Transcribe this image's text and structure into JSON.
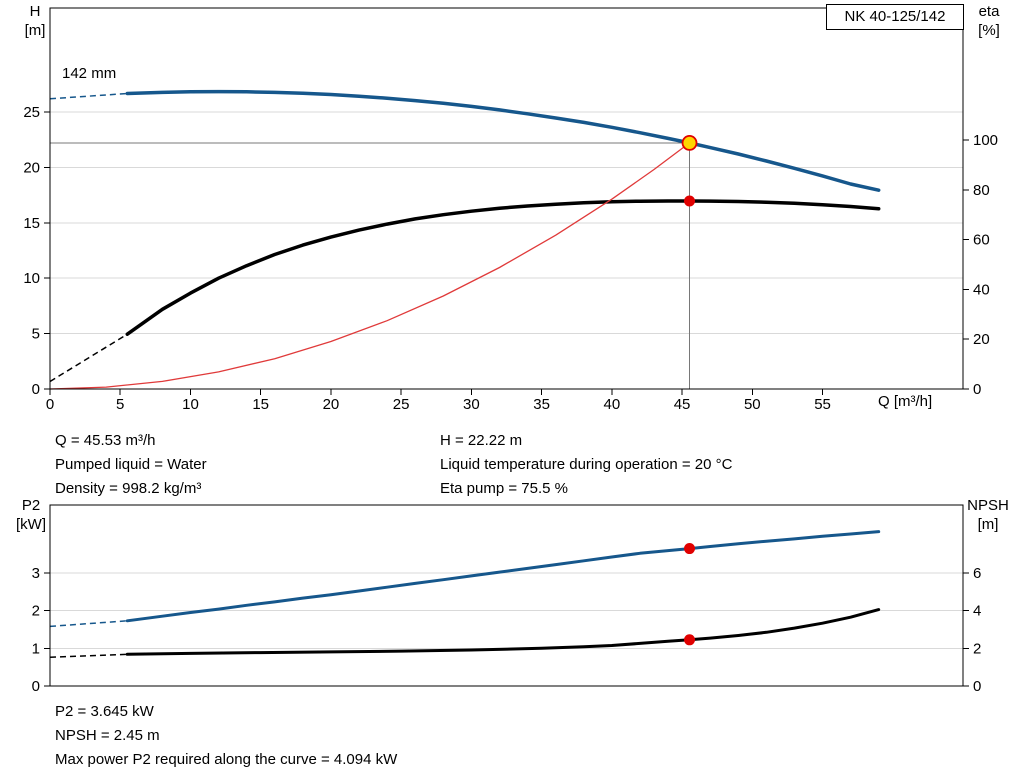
{
  "title_box": "NK 40-125/142",
  "info_top": {
    "left": [
      "Q = 45.53 m³/h",
      "Pumped liquid = Water",
      "Density = 998.2 kg/m³"
    ],
    "right": [
      "H = 22.22 m",
      "Liquid temperature during operation = 20 °C",
      "Eta pump = 75.5 %"
    ]
  },
  "info_bottom": [
    "P2 = 3.645 kW",
    "NPSH = 2.45 m",
    "Max power P2 required along the curve = 4.094 kW"
  ],
  "colors": {
    "curve_blue": "#16578c",
    "curve_black": "#000000",
    "system_red": "#e03a3a",
    "marker_red": "#e00000",
    "marker_yellow": "#ffd500"
  },
  "chart_data": [
    {
      "type": "line",
      "name": "qh-performance",
      "annotations": {
        "impeller": "142 mm"
      },
      "x_axis": {
        "label": "Q [m³/h]",
        "min": 0,
        "max": 65,
        "ticks": [
          0,
          5,
          10,
          15,
          20,
          25,
          30,
          35,
          40,
          45,
          50,
          55
        ]
      },
      "y_left": {
        "label": "H",
        "unit": "[m]",
        "min": 0,
        "max": 34.4,
        "ticks": [
          0,
          5,
          10,
          15,
          20,
          25
        ]
      },
      "y_right": {
        "label": "eta",
        "unit": "[%]",
        "min": 0,
        "max": 153,
        "ticks": [
          0,
          20,
          40,
          60,
          80,
          100
        ]
      },
      "duty_lines": {
        "q": 45.53,
        "h": 22.22
      },
      "series": [
        {
          "name": "head",
          "axis": "left",
          "color": "#16578c",
          "width": 3.5,
          "dashed": [
            [
              0,
              26.2
            ],
            [
              5.5,
              26.68
            ]
          ],
          "points": [
            [
              5.5,
              26.68
            ],
            [
              8,
              26.78
            ],
            [
              10,
              26.83
            ],
            [
              12,
              26.85
            ],
            [
              14,
              26.83
            ],
            [
              16,
              26.78
            ],
            [
              18,
              26.7
            ],
            [
              20,
              26.59
            ],
            [
              22,
              26.44
            ],
            [
              24,
              26.26
            ],
            [
              26,
              26.04
            ],
            [
              28,
              25.8
            ],
            [
              30,
              25.52
            ],
            [
              32,
              25.2
            ],
            [
              34,
              24.85
            ],
            [
              36,
              24.47
            ],
            [
              38,
              24.07
            ],
            [
              40,
              23.63
            ],
            [
              42,
              23.14
            ],
            [
              44,
              22.63
            ],
            [
              45.53,
              22.22
            ],
            [
              47,
              21.8
            ],
            [
              49,
              21.22
            ],
            [
              51,
              20.59
            ],
            [
              53,
              19.93
            ],
            [
              55,
              19.24
            ],
            [
              57,
              18.51
            ],
            [
              59,
              17.95
            ]
          ]
        },
        {
          "name": "efficiency",
          "axis": "right",
          "color": "#000000",
          "width": 3.5,
          "dashed": [
            [
              0,
              3
            ],
            [
              5.5,
              22
            ]
          ],
          "points": [
            [
              5.5,
              22
            ],
            [
              8,
              32
            ],
            [
              10,
              38.5
            ],
            [
              12,
              44.5
            ],
            [
              14,
              49.5
            ],
            [
              16,
              54
            ],
            [
              18,
              57.8
            ],
            [
              20,
              61
            ],
            [
              22,
              63.8
            ],
            [
              24,
              66.2
            ],
            [
              26,
              68.3
            ],
            [
              28,
              70
            ],
            [
              30,
              71.4
            ],
            [
              32,
              72.6
            ],
            [
              34,
              73.5
            ],
            [
              36,
              74.2
            ],
            [
              38,
              74.8
            ],
            [
              40,
              75.2
            ],
            [
              42,
              75.4
            ],
            [
              44,
              75.5
            ],
            [
              45.53,
              75.5
            ],
            [
              47,
              75.45
            ],
            [
              49,
              75.3
            ],
            [
              51,
              75.0
            ],
            [
              53,
              74.6
            ],
            [
              55,
              74.0
            ],
            [
              57,
              73.3
            ],
            [
              59,
              72.4
            ]
          ]
        },
        {
          "name": "system",
          "axis": "left",
          "color": "#e03a3a",
          "width": 1.3,
          "points": [
            [
              0,
              0
            ],
            [
              4,
              0.17
            ],
            [
              8,
              0.69
            ],
            [
              12,
              1.54
            ],
            [
              16,
              2.74
            ],
            [
              20,
              4.29
            ],
            [
              24,
              6.17
            ],
            [
              28,
              8.4
            ],
            [
              32,
              10.97
            ],
            [
              36,
              13.89
            ],
            [
              40,
              17.14
            ],
            [
              43,
              19.82
            ],
            [
              45.53,
              22.22
            ]
          ]
        }
      ],
      "markers": [
        {
          "q": 45.53,
          "value": 75.5,
          "axis": "right",
          "color": "#e00000",
          "r": 5.5,
          "name": "duty-eta-marker"
        },
        {
          "q": 45.53,
          "value": 22.22,
          "axis": "left",
          "color": "#ffd500",
          "ring": "#e00000",
          "r": 7,
          "name": "duty-point-marker"
        }
      ],
      "duty_point": {
        "q": 45.53,
        "h": 22.22,
        "eta": 75.5
      }
    },
    {
      "type": "line",
      "name": "power-npsh",
      "x_axis": {
        "min": 0,
        "max": 65,
        "ticks": []
      },
      "y_left": {
        "label": "P2",
        "unit": "[kW]",
        "min": 0,
        "max": 4.8,
        "ticks": [
          0,
          1,
          2,
          3
        ]
      },
      "y_right": {
        "label": "NPSH",
        "unit": "[m]",
        "min": 0,
        "max": 9.6,
        "ticks": [
          0,
          2,
          4,
          6
        ]
      },
      "series": [
        {
          "name": "p2",
          "axis": "left",
          "color": "#16578c",
          "width": 3,
          "dashed": [
            [
              0,
              1.58
            ],
            [
              5.5,
              1.73
            ]
          ],
          "points": [
            [
              5.5,
              1.73
            ],
            [
              8,
              1.85
            ],
            [
              10,
              1.95
            ],
            [
              12,
              2.04
            ],
            [
              14,
              2.14
            ],
            [
              16,
              2.23
            ],
            [
              18,
              2.33
            ],
            [
              20,
              2.42
            ],
            [
              22,
              2.52
            ],
            [
              24,
              2.62
            ],
            [
              26,
              2.72
            ],
            [
              28,
              2.82
            ],
            [
              30,
              2.92
            ],
            [
              32,
              3.02
            ],
            [
              34,
              3.12
            ],
            [
              36,
              3.22
            ],
            [
              38,
              3.32
            ],
            [
              40,
              3.42
            ],
            [
              42,
              3.52
            ],
            [
              44,
              3.59
            ],
            [
              45.53,
              3.645
            ],
            [
              47,
              3.7
            ],
            [
              49,
              3.77
            ],
            [
              51,
              3.84
            ],
            [
              53,
              3.9
            ],
            [
              55,
              3.97
            ],
            [
              57,
              4.03
            ],
            [
              59,
              4.094
            ]
          ]
        },
        {
          "name": "npsh",
          "axis": "right",
          "color": "#000000",
          "width": 3,
          "dashed": [
            [
              0,
              1.53
            ],
            [
              5.5,
              1.68
            ]
          ],
          "points": [
            [
              5.5,
              1.68
            ],
            [
              10,
              1.73
            ],
            [
              15,
              1.77
            ],
            [
              20,
              1.81
            ],
            [
              25,
              1.85
            ],
            [
              30,
              1.91
            ],
            [
              35,
              2.0
            ],
            [
              38,
              2.08
            ],
            [
              40,
              2.15
            ],
            [
              42,
              2.26
            ],
            [
              44,
              2.37
            ],
            [
              45.53,
              2.45
            ],
            [
              47,
              2.54
            ],
            [
              49,
              2.68
            ],
            [
              51,
              2.85
            ],
            [
              53,
              3.07
            ],
            [
              55,
              3.33
            ],
            [
              57,
              3.65
            ],
            [
              59,
              4.05
            ]
          ]
        }
      ],
      "markers": [
        {
          "q": 45.53,
          "value": 3.645,
          "axis": "left",
          "color": "#e00000",
          "r": 5.5,
          "name": "duty-p2-marker"
        },
        {
          "q": 45.53,
          "value": 2.45,
          "axis": "right",
          "color": "#e00000",
          "r": 5.5,
          "name": "duty-npsh-marker"
        }
      ],
      "duty_point": {
        "q": 45.53,
        "p2": 3.645,
        "npsh": 2.45
      }
    }
  ]
}
